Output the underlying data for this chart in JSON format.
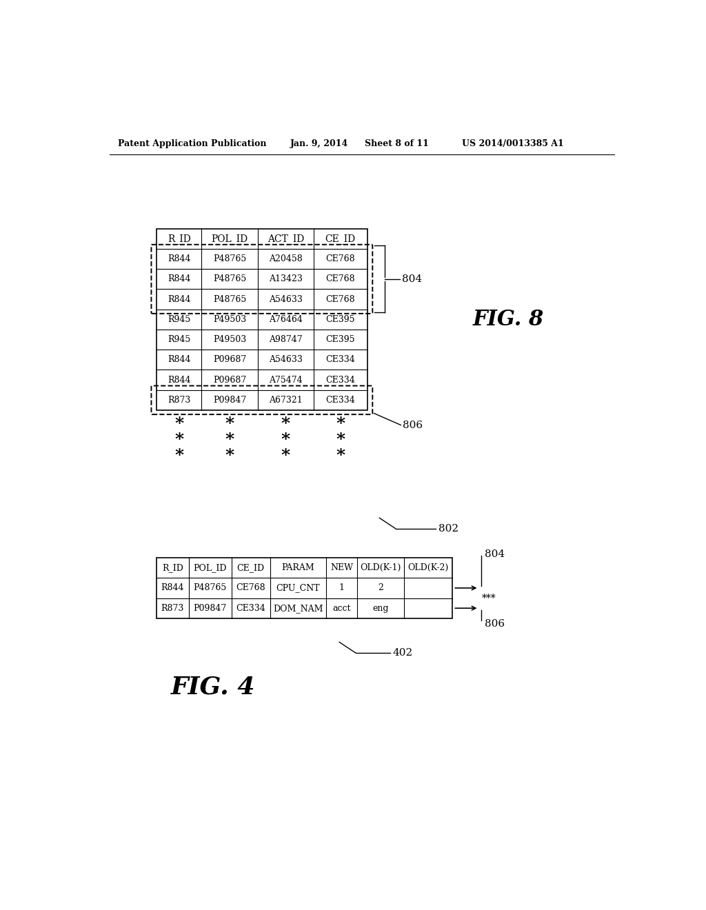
{
  "header_text": "Patent Application Publication",
  "date_text": "Jan. 9, 2014",
  "sheet_text": "Sheet 8 of 11",
  "patent_text": "US 2014/0013385 A1",
  "fig8_label": "FIG. 8",
  "fig4_label": "FIG. 4",
  "table1_headers": [
    "R_ID",
    "POL_ID",
    "ACT_ID",
    "CE_ID"
  ],
  "table1_rows": [
    [
      "R844",
      "P48765",
      "A20458",
      "CE768"
    ],
    [
      "R844",
      "P48765",
      "A13423",
      "CE768"
    ],
    [
      "R844",
      "P48765",
      "A54633",
      "CE768"
    ],
    [
      "R945",
      "P49503",
      "A76464",
      "CE395"
    ],
    [
      "R945",
      "P49503",
      "A98747",
      "CE395"
    ],
    [
      "R844",
      "P09687",
      "A54633",
      "CE334"
    ],
    [
      "R844",
      "P09687",
      "A75474",
      "CE334"
    ],
    [
      "R873",
      "P09847",
      "A67321",
      "CE334"
    ]
  ],
  "label_804": "804",
  "label_806": "806",
  "label_802": "802",
  "label_402": "402",
  "table2_headers": [
    "R_ID",
    "POL_ID",
    "CE_ID",
    "PARAM",
    "NEW",
    "OLD(K-1)",
    "OLD(K-2)"
  ],
  "table2_rows": [
    [
      "R844",
      "P48765",
      "CE768",
      "CPU_CNT",
      "1",
      "2",
      ""
    ],
    [
      "R873",
      "P09847",
      "CE334",
      "DOM_NAM",
      "acct",
      "eng",
      ""
    ]
  ],
  "background_color": "#ffffff",
  "text_color": "#000000",
  "font_size_header_bar": 9,
  "font_size_table1_hdr": 10,
  "font_size_table1_cell": 9,
  "font_size_table2_cell": 9,
  "font_size_label": 11,
  "font_size_fig8": 22,
  "font_size_fig4": 26,
  "font_size_star": 18
}
